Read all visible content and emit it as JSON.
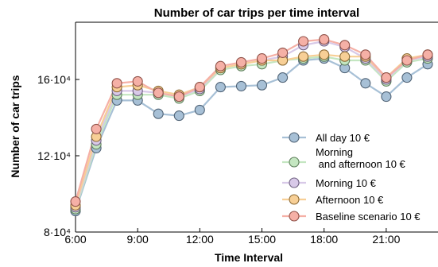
{
  "chart_data": {
    "type": "line",
    "title": "Number of car trips per time interval",
    "xlabel": "Time Interval",
    "ylabel": "Number of car trips",
    "xlim": [
      6.0,
      23.5
    ],
    "ylim": [
      80000,
      190000
    ],
    "grid": false,
    "legend_position": "bottom-right",
    "x": [
      6,
      7,
      8,
      9,
      10,
      11,
      12,
      13,
      14,
      15,
      16,
      17,
      18,
      19,
      20,
      21,
      22,
      23
    ],
    "x_ticks": [
      {
        "value": 6,
        "label": "6:00"
      },
      {
        "value": 9,
        "label": "9:00"
      },
      {
        "value": 12,
        "label": "12:00"
      },
      {
        "value": 15,
        "label": "15:00"
      },
      {
        "value": 18,
        "label": "18:00"
      },
      {
        "value": 21,
        "label": "21:00"
      }
    ],
    "y_ticks": [
      {
        "value": 80000,
        "label": "8·10⁴"
      },
      {
        "value": 120000,
        "label": "12·10⁴"
      },
      {
        "value": 160000,
        "label": "16·10⁴"
      }
    ],
    "series": [
      {
        "name": "All day 10 €",
        "color": "#a7c0d6",
        "edge": "#4f6275",
        "values": [
          91000,
          124000,
          149000,
          149000,
          142000,
          141000,
          144000,
          156000,
          156500,
          157000,
          161000,
          170000,
          171000,
          166000,
          158000,
          151000,
          161000,
          168000
        ]
      },
      {
        "name": "Morning\n and afternoon 10 €",
        "color": "#c4e6c1",
        "edge": "#5f7f5c",
        "values": [
          92000,
          126000,
          152000,
          152000,
          152000,
          150000,
          154000,
          165000,
          167000,
          168000,
          170000,
          171000,
          172000,
          170000,
          170000,
          159000,
          169000,
          171000
        ]
      },
      {
        "name": "Morning 10 €",
        "color": "#d8c9e8",
        "edge": "#6e6080",
        "values": [
          93000,
          128000,
          154000,
          154000,
          153000,
          151000,
          155000,
          166000,
          168000,
          170000,
          172000,
          178000,
          180000,
          177000,
          171000,
          160000,
          170000,
          172000
        ]
      },
      {
        "name": "Afternoon 10 €",
        "color": "#f7cf96",
        "edge": "#8c6a35",
        "values": [
          94000,
          130000,
          156000,
          157000,
          154000,
          152000,
          156000,
          166000,
          168000,
          170000,
          170000,
          172000,
          173000,
          172000,
          172000,
          161000,
          171000,
          173000
        ]
      },
      {
        "name": "Baseline scenario 10 €",
        "color": "#f5b0a6",
        "edge": "#8f5148",
        "values": [
          96000,
          134000,
          158000,
          159000,
          153000,
          151000,
          156000,
          167000,
          169000,
          171000,
          174000,
          180000,
          181000,
          178000,
          173000,
          161000,
          170000,
          173000
        ]
      }
    ]
  }
}
